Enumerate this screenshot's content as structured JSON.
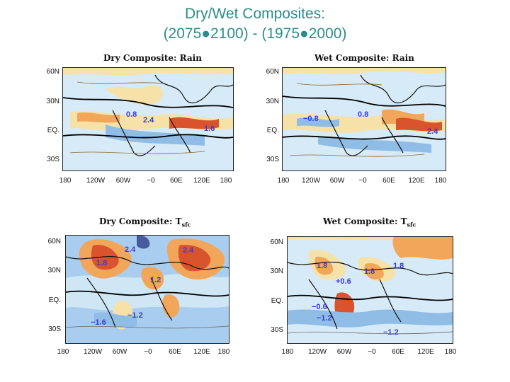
{
  "slide": {
    "title_line1": "Dry/Wet Composites:",
    "title_line2": "(2075●2100) - (1975●2000)"
  },
  "axes": {
    "lat_labels": [
      "60N",
      "30N",
      "EQ.",
      "30S"
    ],
    "lon_labels": [
      "180",
      "120W",
      "60W",
      "−0",
      "60E",
      "120E",
      "180"
    ]
  },
  "panels": [
    {
      "title": "Dry Composite: Rain",
      "title_sub": "",
      "values": [
        "0.8",
        "2.4",
        "1.6"
      ]
    },
    {
      "title": "Wet Composite: Rain",
      "title_sub": "",
      "values": [
        "−0.8",
        "0.8",
        "2.4"
      ]
    },
    {
      "title": "Dry Composite: T",
      "title_sub": "sfc",
      "values": [
        "2.4",
        "2.4",
        "1.8",
        "1.2",
        "−1.2",
        "−1.6"
      ]
    },
    {
      "title": "Wet Composite: T",
      "title_sub": "sfc",
      "values": [
        "1.8",
        "1.8",
        "1.8",
        "+0.6",
        "−0.6",
        "−1.2",
        "−1.2"
      ]
    }
  ],
  "colors": {
    "title": "#2e8b8b",
    "ocean_cool": "#cfe6f5",
    "cool_mid": "#8fbde6",
    "warm_light": "#f6e2a8",
    "warm_mid": "#f2a65a",
    "warm_strong": "#d9542c",
    "value_labels": "#3a3ad8"
  }
}
